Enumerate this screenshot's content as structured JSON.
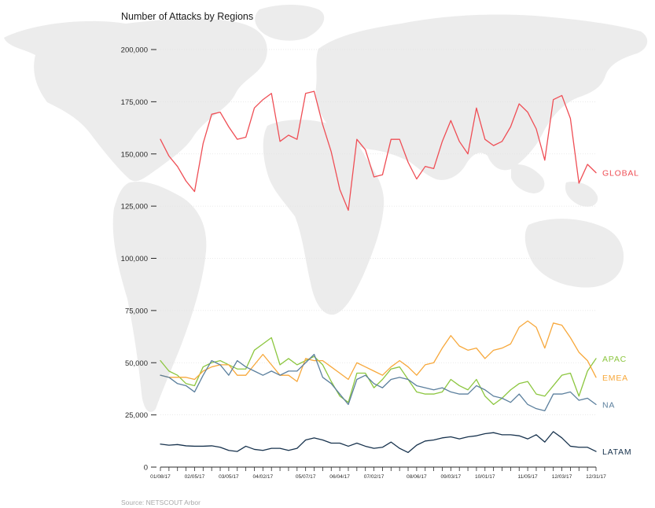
{
  "chart_data": {
    "type": "line",
    "title": "Number of Attacks by Regions",
    "source": "Source: NETSCOUT Arbor",
    "ylim": [
      0,
      200000
    ],
    "yticks": [
      0,
      25000,
      50000,
      75000,
      100000,
      125000,
      150000,
      175000,
      200000
    ],
    "ytick_labels": [
      "0",
      "25,000",
      "50,000",
      "75,000",
      "100,000",
      "125,000",
      "150,000",
      "175,000",
      "200,000"
    ],
    "x_start": "01/08/17",
    "x_end": "12/31/17",
    "xtick_labels": [
      "01/08/17",
      "02/05/17",
      "03/05/17",
      "04/02/17",
      "05/07/17",
      "06/04/17",
      "07/02/17",
      "08/06/17",
      "09/03/17",
      "10/01/17",
      "11/05/17",
      "12/03/17",
      "12/31/17"
    ],
    "xtick_index": [
      0,
      4,
      8,
      12,
      17,
      21,
      25,
      30,
      34,
      38,
      43,
      47,
      51
    ],
    "grid": true,
    "legend": "inline-right",
    "background": "world-map",
    "series": [
      {
        "name": "GLOBAL",
        "color": "#ef4e55",
        "values": [
          157000,
          149000,
          144000,
          137000,
          132000,
          155000,
          169000,
          170000,
          163000,
          157000,
          158000,
          172000,
          176000,
          179000,
          156000,
          159000,
          157000,
          179000,
          180000,
          164000,
          151000,
          133000,
          123000,
          157000,
          152000,
          139000,
          140000,
          157000,
          157000,
          146000,
          138000,
          144000,
          143000,
          156000,
          166000,
          156000,
          150000,
          172000,
          157000,
          154000,
          156000,
          163000,
          174000,
          170000,
          162000,
          147000,
          176000,
          178000,
          167000,
          136000,
          145000,
          141000
        ]
      },
      {
        "name": "APAC",
        "color": "#8cc63f",
        "values": [
          51000,
          46000,
          44000,
          40000,
          39000,
          48000,
          50000,
          51000,
          49000,
          47000,
          47000,
          56000,
          59000,
          62000,
          49000,
          52000,
          49000,
          51000,
          53000,
          49000,
          41000,
          34000,
          31000,
          45000,
          45000,
          38000,
          42000,
          47000,
          48000,
          42000,
          36000,
          35000,
          35000,
          36000,
          42000,
          39000,
          37000,
          42000,
          34000,
          30000,
          33000,
          37000,
          40000,
          41000,
          35000,
          34000,
          39000,
          44000,
          45000,
          34000,
          46000,
          52000
        ]
      },
      {
        "name": "EMEA",
        "color": "#f7a83b",
        "values": [
          44000,
          43000,
          43000,
          43000,
          42000,
          46000,
          48000,
          49000,
          49000,
          44000,
          44000,
          49000,
          54000,
          49000,
          44000,
          44000,
          41000,
          52000,
          51000,
          51000,
          48000,
          45000,
          42000,
          50000,
          48000,
          46000,
          44000,
          48000,
          51000,
          48000,
          44000,
          49000,
          50000,
          57000,
          63000,
          58000,
          56000,
          57000,
          52000,
          56000,
          57000,
          59000,
          67000,
          70000,
          67000,
          57000,
          69000,
          68000,
          62000,
          55000,
          51000,
          43000
        ]
      },
      {
        "name": "NA",
        "color": "#5b7f9d",
        "values": [
          44000,
          43000,
          40000,
          39000,
          36000,
          44000,
          51000,
          49000,
          44000,
          51000,
          48000,
          46000,
          44000,
          46000,
          44000,
          46000,
          46000,
          50000,
          54000,
          43000,
          40000,
          35000,
          30000,
          42000,
          44000,
          40000,
          38000,
          42000,
          43000,
          42000,
          39000,
          38000,
          37000,
          38000,
          36000,
          35000,
          35000,
          39000,
          37000,
          34000,
          33000,
          31000,
          35000,
          30000,
          28000,
          27000,
          35000,
          35000,
          36000,
          32000,
          33000,
          30000
        ]
      },
      {
        "name": "LATAM",
        "color": "#17324d",
        "values": [
          11000,
          10500,
          10800,
          10200,
          10000,
          10000,
          10200,
          9500,
          8000,
          7500,
          10000,
          8500,
          8000,
          9000,
          9000,
          8000,
          9000,
          13000,
          14000,
          13000,
          11500,
          11500,
          10000,
          11500,
          10000,
          9000,
          9500,
          12000,
          9000,
          7000,
          10500,
          12500,
          13000,
          14000,
          14500,
          13500,
          14500,
          15000,
          16000,
          16500,
          15500,
          15500,
          15000,
          13500,
          15500,
          12000,
          17000,
          14000,
          10000,
          9500,
          9500,
          7500
        ]
      }
    ]
  }
}
